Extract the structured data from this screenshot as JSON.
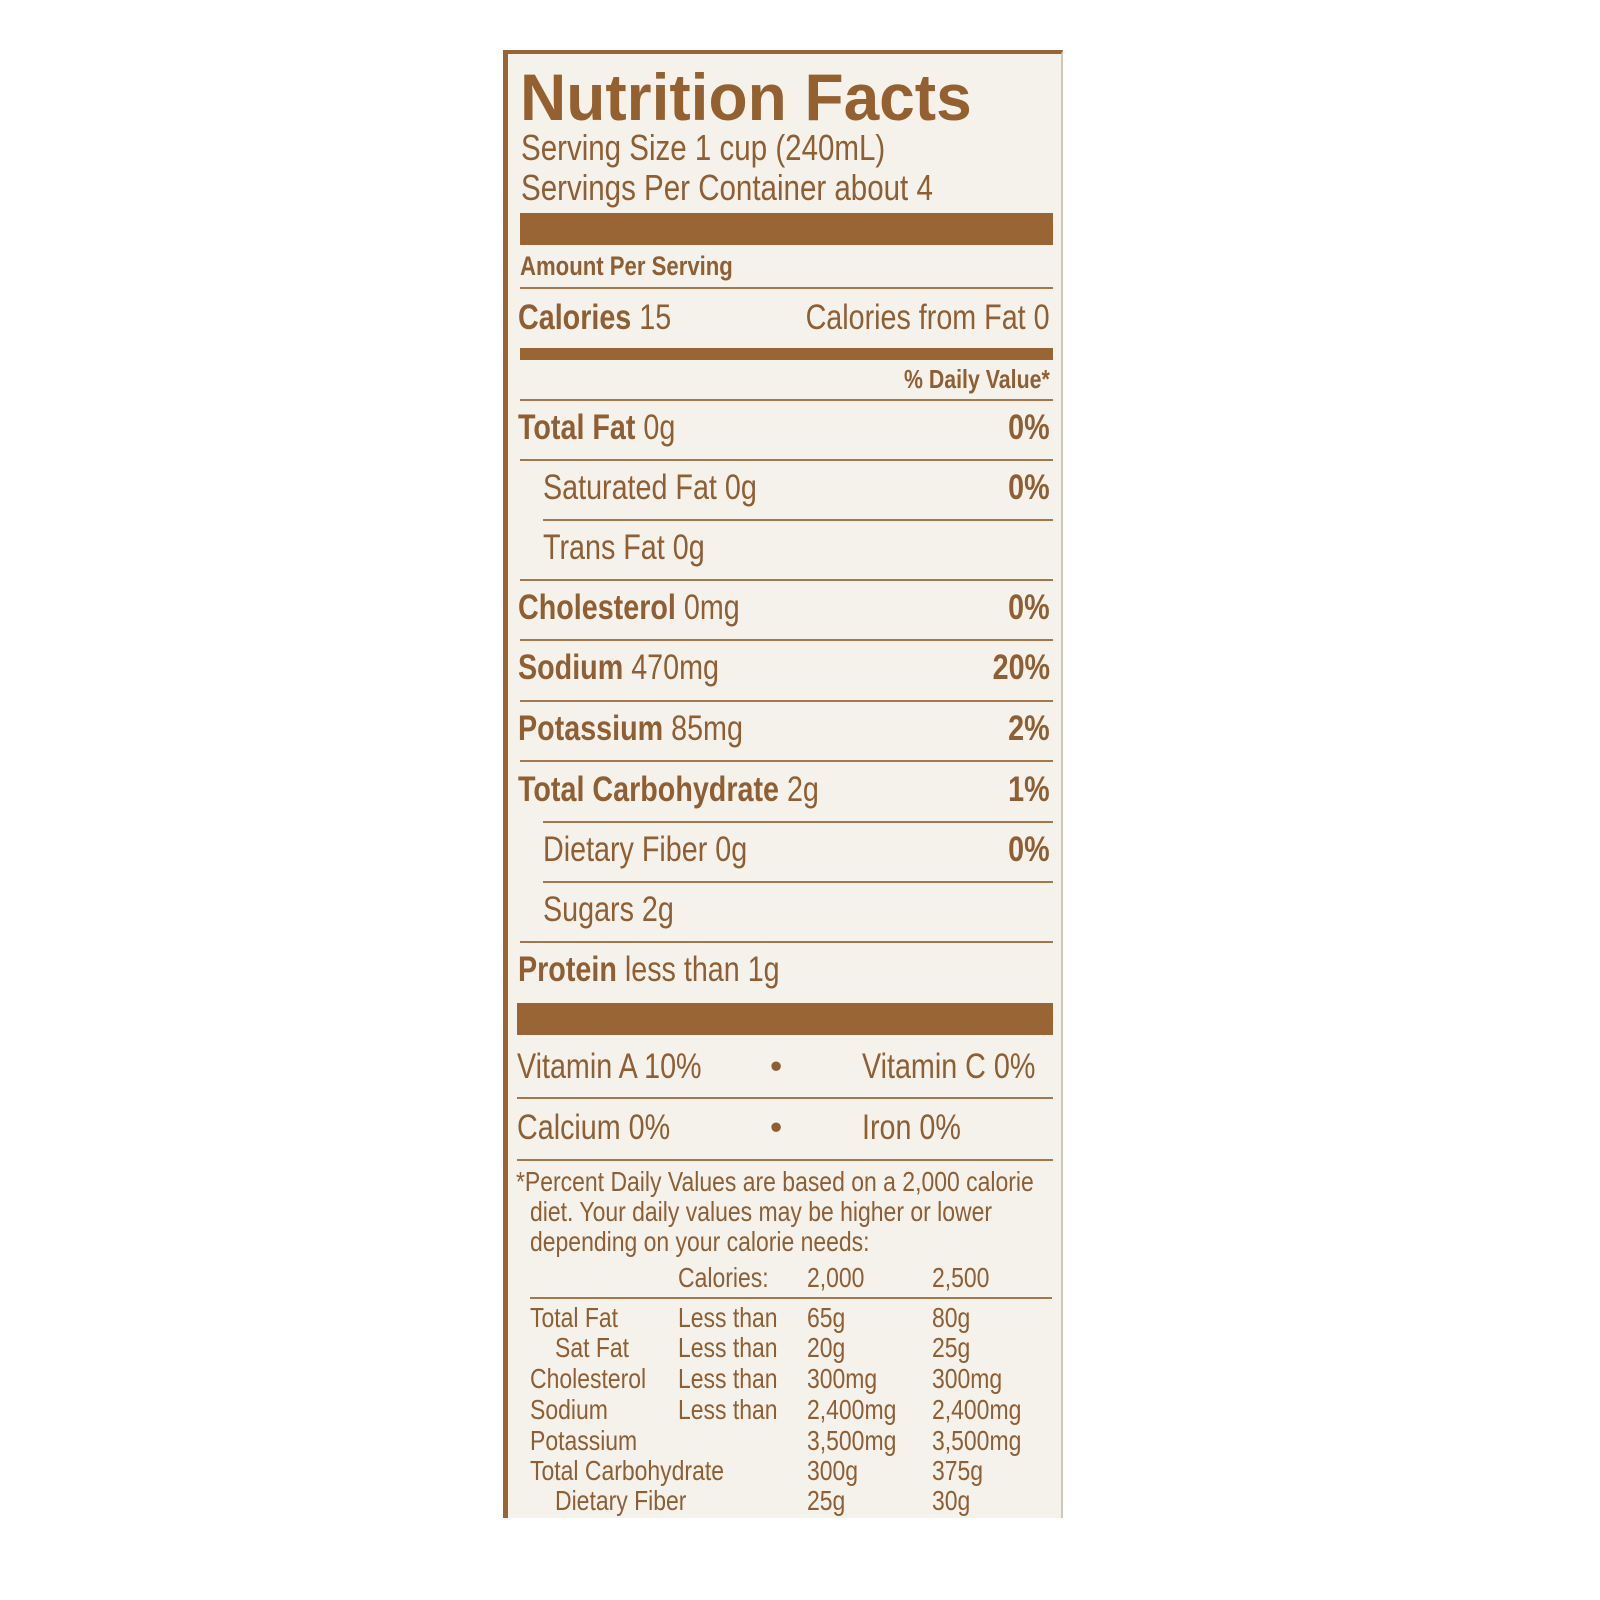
{
  "title": "Nutrition Facts",
  "serving_size": "Serving Size 1 cup (240mL)",
  "servings_per_container": "Servings Per Container about 4",
  "amount_per_serving": "Amount Per Serving",
  "calories": {
    "label": "Calories",
    "value": "15",
    "from_fat": "Calories from Fat 0"
  },
  "daily_value_header": "% Daily Value*",
  "nutrients": [
    {
      "name": "Total Fat",
      "amount": "0g",
      "dv": "0%"
    },
    {
      "name": "Saturated Fat",
      "amount": "0g",
      "dv": "0%"
    },
    {
      "name": "Trans Fat",
      "amount": "0g",
      "dv": ""
    },
    {
      "name": "Cholesterol",
      "amount": "0mg",
      "dv": "0%"
    },
    {
      "name": "Sodium",
      "amount": "470mg",
      "dv": "20%"
    },
    {
      "name": "Potassium",
      "amount": "85mg",
      "dv": "2%"
    },
    {
      "name": "Total Carbohydrate",
      "amount": "2g",
      "dv": "1%"
    },
    {
      "name": "Dietary Fiber",
      "amount": "0g",
      "dv": "0%"
    },
    {
      "name": "Sugars",
      "amount": "2g",
      "dv": ""
    },
    {
      "name": "Protein",
      "amount": "less than 1g",
      "dv": ""
    }
  ],
  "vitamins": [
    {
      "left": "Vitamin A 10%",
      "right": "Vitamin C 0%"
    },
    {
      "left": "Calcium 0%",
      "right": "Iron 0%"
    }
  ],
  "separator": "•",
  "footnote": [
    "*Percent Daily Values are based on a 2,000 calorie",
    "diet. Your daily values may be higher or lower",
    "depending on your calorie needs:"
  ],
  "reference_table": {
    "header": {
      "label": "Calories:",
      "col1": "2,000",
      "col2": "2,500"
    },
    "rows": [
      {
        "name": "Total Fat",
        "qualifier": "Less than",
        "col1": "65g",
        "col2": "80g"
      },
      {
        "name": "Sat Fat",
        "qualifier": "Less than",
        "col1": "20g",
        "col2": "25g"
      },
      {
        "name": "Cholesterol",
        "qualifier": "Less than",
        "col1": "300mg",
        "col2": "300mg"
      },
      {
        "name": "Sodium",
        "qualifier": "Less than",
        "col1": "2,400mg",
        "col2": "2,400mg"
      },
      {
        "name": "Potassium",
        "qualifier": "",
        "col1": "3,500mg",
        "col2": "3,500mg"
      },
      {
        "name": "Total Carbohydrate",
        "qualifier": "",
        "col1": "300g",
        "col2": "375g"
      },
      {
        "name": "Dietary Fiber",
        "qualifier": "",
        "col1": "25g",
        "col2": "30g"
      }
    ]
  },
  "colors": {
    "ink": "#8f5e33",
    "bar": "#9a6535",
    "background": "#f4f2ea"
  }
}
